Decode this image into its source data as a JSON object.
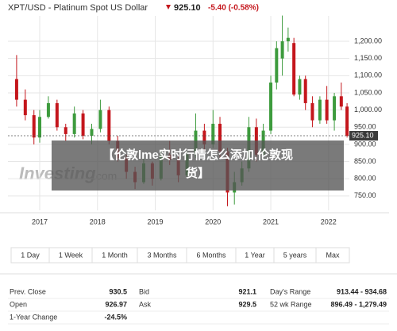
{
  "header": {
    "title": "XPT/USD - Platinum Spot US Dollar",
    "price": "925.10",
    "change": "-5.40 (-0.58%)"
  },
  "chart_data": {
    "type": "candlestick",
    "x": [
      2016.6,
      2016.75,
      2016.9,
      2017.0,
      2017.15,
      2017.3,
      2017.45,
      2017.6,
      2017.75,
      2017.9,
      2018.05,
      2018.2,
      2018.35,
      2018.5,
      2018.65,
      2018.8,
      2018.95,
      2019.1,
      2019.25,
      2019.4,
      2019.55,
      2019.7,
      2019.85,
      2020.0,
      2020.12,
      2020.25,
      2020.37,
      2020.5,
      2020.62,
      2020.75,
      2020.87,
      2021.0,
      2021.1,
      2021.2,
      2021.3,
      2021.4,
      2021.5,
      2021.6,
      2021.72,
      2021.85,
      2021.97,
      2022.1,
      2022.22,
      2022.32
    ],
    "open": [
      1090,
      1030,
      985,
      920,
      980,
      1020,
      950,
      930,
      990,
      925,
      945,
      1000,
      910,
      860,
      820,
      790,
      845,
      800,
      870,
      855,
      810,
      870,
      940,
      900,
      960,
      880,
      760,
      790,
      830,
      950,
      870,
      940,
      1080,
      1150,
      1200,
      1195,
      1045,
      1090,
      1020,
      970,
      1030,
      970,
      1040,
      1010
    ],
    "high": [
      1160,
      1060,
      1000,
      1000,
      1040,
      1030,
      960,
      1010,
      1000,
      960,
      1030,
      1010,
      925,
      870,
      835,
      860,
      850,
      880,
      910,
      870,
      880,
      990,
      960,
      1000,
      980,
      890,
      820,
      850,
      980,
      975,
      960,
      1100,
      1200,
      1275,
      1240,
      1210,
      1100,
      1100,
      1040,
      1040,
      1070,
      1050,
      1080,
      1020
    ],
    "low": [
      1010,
      970,
      900,
      905,
      975,
      940,
      910,
      920,
      915,
      900,
      935,
      900,
      850,
      800,
      770,
      785,
      780,
      795,
      840,
      790,
      805,
      860,
      880,
      890,
      860,
      720,
      725,
      780,
      820,
      850,
      855,
      930,
      1060,
      1100,
      1170,
      1040,
      1030,
      1000,
      950,
      960,
      960,
      940,
      1000,
      920
    ],
    "close": [
      1030,
      985,
      920,
      980,
      1020,
      950,
      930,
      990,
      925,
      945,
      1000,
      910,
      860,
      820,
      790,
      845,
      800,
      870,
      855,
      810,
      870,
      940,
      900,
      960,
      880,
      760,
      790,
      830,
      950,
      870,
      940,
      1080,
      1180,
      1200,
      1210,
      1045,
      1090,
      1020,
      970,
      1030,
      970,
      1040,
      1010,
      925.1
    ],
    "up_color": "#3d9b3d",
    "down_color": "#c4161c",
    "xlim": [
      2016.45,
      2022.36
    ],
    "xticks": [
      2017,
      2018,
      2019,
      2020,
      2021,
      2022
    ],
    "ylim": [
      708,
      1274
    ],
    "yticks": [
      {
        "value": 750,
        "label": "750.00"
      },
      {
        "value": 800,
        "label": "800.00"
      },
      {
        "value": 850,
        "label": "850.00"
      },
      {
        "value": 900,
        "label": "900.00"
      },
      {
        "value": 950,
        "label": "950.00"
      },
      {
        "value": 1000,
        "label": "1,000.00"
      },
      {
        "value": 1050,
        "label": "1,050.00"
      },
      {
        "value": 1100,
        "label": "1,100.00"
      },
      {
        "value": 1150,
        "label": "1,150.00"
      },
      {
        "value": 1200,
        "label": "1,200.00"
      }
    ],
    "last": {
      "value": 925.1,
      "label": "925.10"
    },
    "grid": true
  },
  "watermark": [
    "Investing",
    ".com"
  ],
  "overlay": [
    "【伦敦lme实时行情怎么添加,伦敦现",
    "货】"
  ],
  "buttons": [
    "1 Day",
    "1 Week",
    "1 Month",
    "3 Months",
    "6 Months",
    "1 Year",
    "5 years",
    "Max"
  ],
  "stats": [
    [
      "Prev. Close",
      "930.5",
      "Bid",
      "921.1",
      "Day's Range",
      "913.44 - 934.68"
    ],
    [
      "Open",
      "926.97",
      "Ask",
      "929.5",
      "52 wk Range",
      "896.49 - 1,279.49"
    ],
    [
      "1-Year Change",
      "-24.5%"
    ]
  ]
}
